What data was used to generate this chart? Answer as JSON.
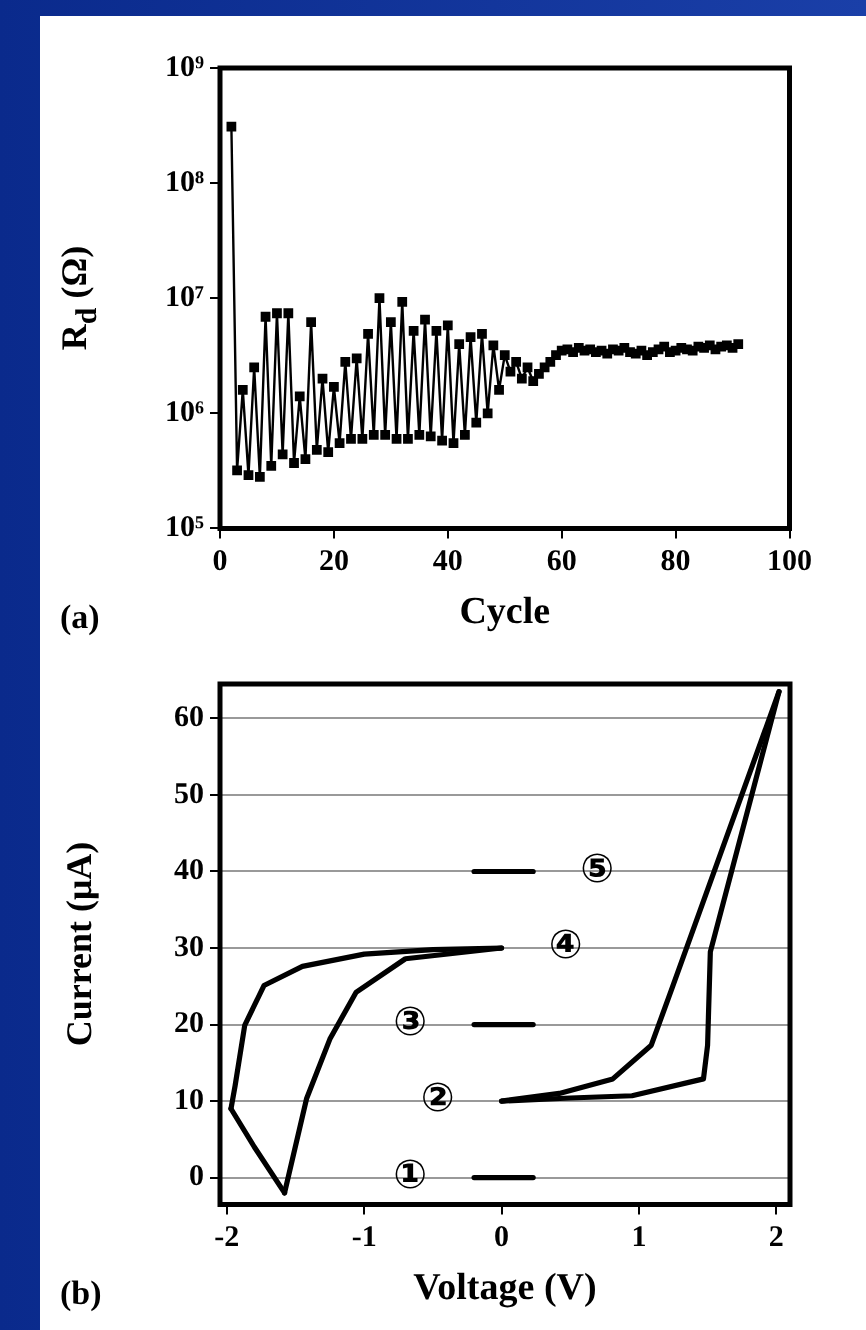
{
  "chart_data": [
    {
      "type": "line",
      "xlabel": "Cycle",
      "ylabel": "R$_{d}$ (Ω)",
      "annotations": [
        "(a)"
      ],
      "log": "y",
      "marker": "square",
      "line_style": "solid",
      "xlim": [
        0,
        100
      ],
      "xticks": [
        0,
        20,
        40,
        60,
        80,
        100
      ],
      "ylim": [
        100000,
        1000000000
      ],
      "yticks": [
        {
          "value": 100000,
          "label": "10⁵"
        },
        {
          "value": 1000000,
          "label": "10⁶"
        },
        {
          "value": 10000000,
          "label": "10⁷"
        },
        {
          "value": 100000000,
          "label": "10⁸"
        },
        {
          "value": 1000000000,
          "label": "10⁹"
        }
      ],
      "series": [
        {
          "color": "#000000",
          "x": [
            2,
            3,
            4,
            5,
            6,
            7,
            8,
            9,
            10,
            11,
            12,
            13,
            14,
            15,
            16,
            17,
            18,
            19,
            20,
            21,
            22,
            23,
            24,
            25,
            26,
            27,
            28,
            29,
            30,
            31,
            32,
            33,
            34,
            35,
            36,
            37,
            38,
            39,
            40,
            41,
            42,
            43,
            44,
            45,
            46,
            47,
            48,
            49,
            50,
            51,
            52,
            53,
            54,
            55,
            56,
            57,
            58,
            59,
            60,
            61,
            62,
            63,
            64,
            65,
            66,
            67,
            68,
            69,
            70,
            71,
            72,
            73,
            74,
            75,
            76,
            77,
            78,
            79,
            80,
            81,
            82,
            83,
            84,
            85,
            86,
            87,
            88,
            89,
            90,
            91
          ],
          "values": [
            310000000,
            320000,
            1600000,
            290000,
            2500000,
            280000,
            6900000,
            350000,
            7400000,
            440000,
            7400000,
            370000,
            1400000,
            400000,
            6200000,
            480000,
            2000000,
            460000,
            1700000,
            550000,
            2800000,
            600000,
            3000000,
            600000,
            4900000,
            650000,
            10000000,
            650000,
            6200000,
            600000,
            9300000,
            600000,
            5200000,
            650000,
            6500000,
            630000,
            5200000,
            580000,
            5800000,
            550000,
            4000000,
            650000,
            4600000,
            830000,
            4900000,
            1000000,
            3900000,
            1600000,
            3200000,
            2300000,
            2800000,
            2000000,
            2500000,
            1900000,
            2200000,
            2500000,
            2800000,
            3200000,
            3500000,
            3600000,
            3400000,
            3700000,
            3500000,
            3600000,
            3400000,
            3500000,
            3300000,
            3600000,
            3500000,
            3700000,
            3400000,
            3300000,
            3500000,
            3200000,
            3400000,
            3600000,
            3800000,
            3400000,
            3500000,
            3700000,
            3600000,
            3500000,
            3800000,
            3700000,
            3900000,
            3600000,
            3800000,
            3900000,
            3700000,
            4000000
          ]
        }
      ]
    },
    {
      "type": "line",
      "xlabel": "Voltage (V)",
      "ylabel": "Current (μA)",
      "marker": "none",
      "line_style": "solid",
      "grid": "y",
      "annotations": [
        "(b)"
      ],
      "xlim": [
        -2.05,
        2.1
      ],
      "xticks": [
        -2,
        -1,
        0,
        1,
        2
      ],
      "ylim": [
        -3.5,
        64.5
      ],
      "yticks": [
        0,
        10,
        20,
        30,
        40,
        50,
        60
      ],
      "series": [
        {
          "color": "#000000",
          "x": [
            -1.58,
            -1.42,
            -1.25,
            -1.06,
            -0.7,
            0
          ],
          "values": [
            -2,
            10.3,
            18.1,
            24.2,
            28.6,
            30
          ]
        },
        {
          "color": "#000000",
          "x": [
            -1.97,
            -1.8,
            -1.58
          ],
          "values": [
            9,
            4,
            -2
          ]
        },
        {
          "name": "④",
          "color": "#000000",
          "x": [
            0,
            -0.5,
            -1.0,
            -1.45,
            -1.73,
            -1.87,
            -1.94,
            -1.97
          ],
          "values": [
            30,
            29.8,
            29.2,
            27.6,
            25.1,
            19.9,
            12,
            9
          ]
        },
        {
          "name": "②",
          "color": "#000000",
          "x": [
            0,
            0.5,
            0.95,
            1.47,
            1.5,
            1.52,
            2.02
          ],
          "values": [
            10,
            10.4,
            10.7,
            12.9,
            17.3,
            29.5,
            63.5
          ]
        },
        {
          "color": "#000000",
          "x": [
            0,
            0.42,
            0.81,
            1.09,
            1.24,
            2.02
          ],
          "values": [
            10,
            11,
            12.9,
            17.3,
            24.7,
            63.5
          ]
        },
        {
          "name": "①",
          "color": "#000000",
          "x": [
            -0.2,
            0.23
          ],
          "values": [
            0,
            0
          ]
        },
        {
          "name": "③",
          "color": "#000000",
          "x": [
            -0.2,
            0.23
          ],
          "values": [
            20,
            20
          ]
        },
        {
          "name": "⑤",
          "color": "#000000",
          "x": [
            0.23,
            -0.2
          ],
          "values": [
            40,
            40
          ]
        }
      ]
    }
  ]
}
